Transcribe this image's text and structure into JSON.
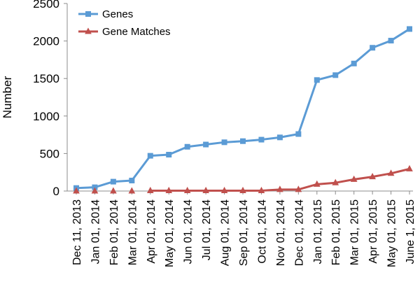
{
  "chart_data": {
    "type": "line",
    "title": "",
    "xlabel": "",
    "ylabel": "Number",
    "ylim": [
      0,
      2500
    ],
    "yticks": [
      0,
      500,
      1000,
      1500,
      2000,
      2500
    ],
    "grid": false,
    "legend": "top-left",
    "categories": [
      "Dec 11, 2013",
      "Jan 01, 2014",
      "Feb 01, 2014",
      "Mar 01, 2014",
      "Apr 01, 2014",
      "May 01, 2014",
      "Jun 01, 2014",
      "Jul 01, 2014",
      "Aug 01, 2014",
      "Sep 01, 2014",
      "Oct 01, 2014",
      "Nov 01, 2014",
      "Dec 01, 2014",
      "Jan 01, 2015",
      "Feb 01, 2015",
      "Mar 01, 2015",
      "Apr 01, 2015",
      "May 01, 2015",
      "June 1, 2015"
    ],
    "series": [
      {
        "name": "Genes",
        "color": "#5b9bd5",
        "marker": "square",
        "values": [
          40,
          50,
          125,
          140,
          470,
          485,
          590,
          620,
          650,
          665,
          685,
          715,
          760,
          1480,
          1545,
          1700,
          1910,
          2005,
          2160
        ]
      },
      {
        "name": "Gene Matches",
        "color": "#c0504d",
        "marker": "triangle",
        "values": [
          null,
          null,
          null,
          null,
          5,
          5,
          5,
          5,
          5,
          5,
          5,
          20,
          20,
          90,
          110,
          155,
          190,
          235,
          295
        ]
      }
    ]
  }
}
